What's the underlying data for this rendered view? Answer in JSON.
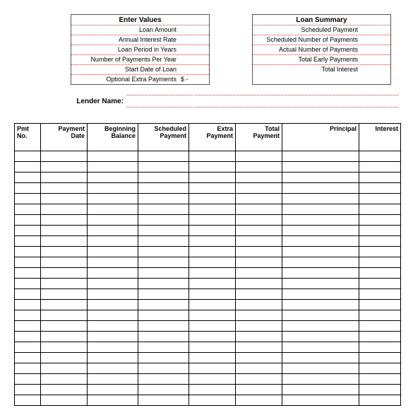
{
  "enter_values": {
    "title": "Enter Values",
    "rows": [
      {
        "label": "Loan Amount",
        "value": ""
      },
      {
        "label": "Annual Interest Rate",
        "value": ""
      },
      {
        "label": "Loan Period in Years",
        "value": ""
      },
      {
        "label": "Number of Payments Per Year",
        "value": ""
      },
      {
        "label": "Start Date of Loan",
        "value": ""
      },
      {
        "label": "Optional Extra Payments",
        "value": "$       -"
      }
    ]
  },
  "loan_summary": {
    "title": "Loan Summary",
    "rows": [
      {
        "label": "Scheduled Payment",
        "value": ""
      },
      {
        "label": "Scheduled Number of Payments",
        "value": ""
      },
      {
        "label": "Actual Number of Payments",
        "value": ""
      },
      {
        "label": "Total Early Payments",
        "value": ""
      },
      {
        "label": "Total Interest",
        "value": ""
      }
    ]
  },
  "lender": {
    "label": "Lender Name:",
    "value": ""
  },
  "schedule": {
    "columns": [
      "Pmt\nNo.",
      "Payment\nDate",
      "Beginning\nBalance",
      "Scheduled\nPayment",
      "Extra\nPayment",
      "Total\nPayment",
      "Principal",
      "Interest"
    ],
    "col_classes": [
      "col-pmt",
      "col-date",
      "col-begbal",
      "col-sched",
      "col-extra",
      "col-total",
      "col-prin",
      "col-int"
    ],
    "row_count": 24,
    "border_color": "#000000",
    "dotted_color": "#c0392b"
  }
}
